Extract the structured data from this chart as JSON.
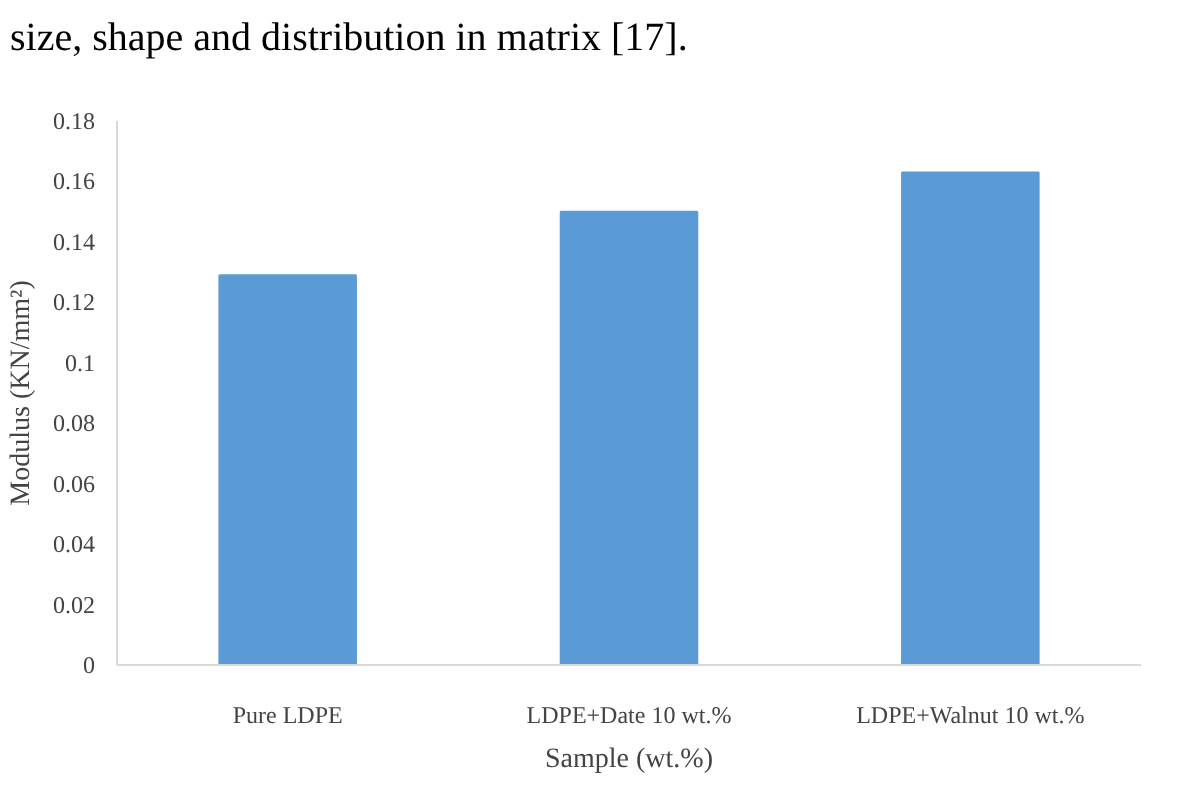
{
  "chart_data": {
    "type": "bar",
    "annotations": [
      "size, shape and distribution in matrix [17]."
    ],
    "xlabel": "Sample (wt.%)",
    "ylabel": "Modulus (KN/mm²)",
    "categories": [
      "Pure LDPE",
      "LDPE+Date 10 wt.%",
      "LDPE+Walnut 10 wt.%"
    ],
    "values": [
      0.129,
      0.15,
      0.163
    ],
    "color": "#5b9bd5",
    "ylim": [
      0,
      0.18
    ],
    "yticks": [
      0,
      0.02,
      0.04,
      0.06,
      0.08,
      0.1,
      0.12,
      0.14,
      0.16,
      0.18
    ],
    "grid": false
  }
}
